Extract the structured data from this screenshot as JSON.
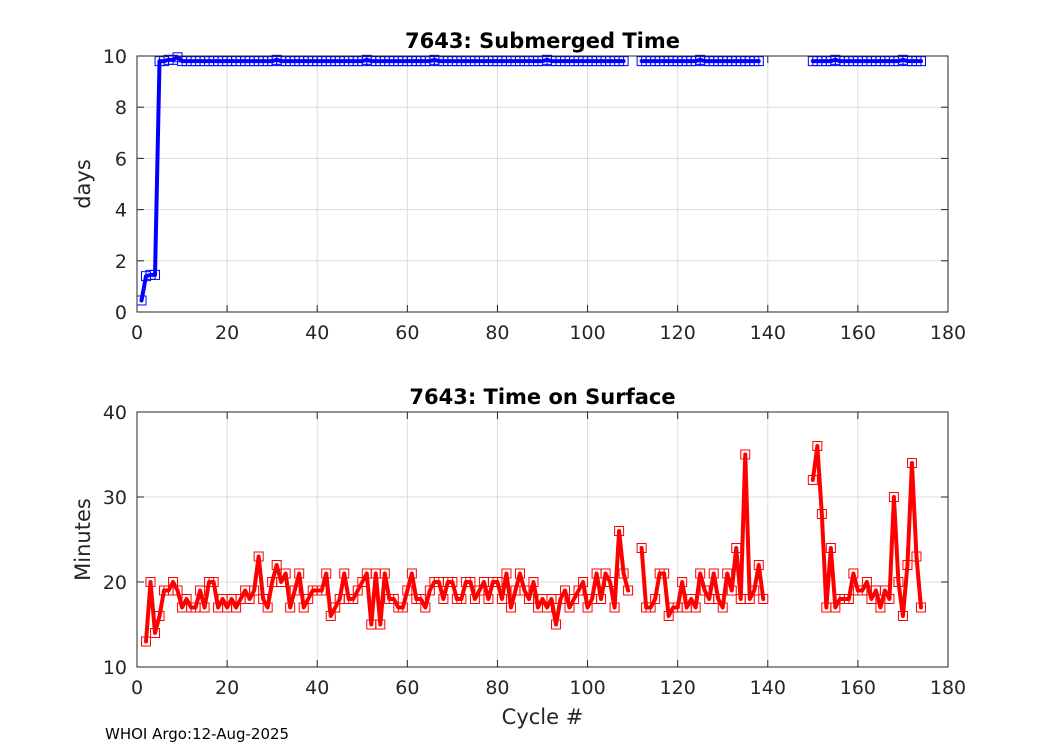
{
  "chart_data": [
    {
      "type": "line",
      "title": "7643: Submerged Time",
      "xlabel": "",
      "ylabel": "days",
      "xlim": [
        0,
        180
      ],
      "ylim": [
        0,
        10
      ],
      "xticks": [
        "0",
        "20",
        "40",
        "60",
        "80",
        "100",
        "120",
        "140",
        "160",
        "180"
      ],
      "yticks": [
        "0",
        "2",
        "4",
        "6",
        "8",
        "10"
      ],
      "grid": true,
      "color": "#0000ff",
      "marker": "square",
      "series": [
        {
          "x": [
            1,
            2,
            3,
            4,
            5,
            6,
            7,
            8,
            9,
            10,
            11,
            12,
            13,
            14,
            15,
            16,
            17,
            18,
            19,
            20,
            21,
            22,
            23,
            24,
            25,
            26,
            27,
            28,
            29,
            30,
            31,
            32,
            33,
            34,
            35,
            36,
            37,
            38,
            39,
            40,
            41,
            42,
            43,
            44,
            45,
            46,
            47,
            48,
            49,
            50,
            51,
            52,
            53,
            54,
            55,
            56,
            57,
            58,
            59,
            60,
            61,
            62,
            63,
            64,
            65,
            66,
            67,
            68,
            69,
            70,
            71,
            72,
            73,
            74,
            75,
            76,
            77,
            78,
            79,
            80,
            81,
            82,
            83,
            84,
            85,
            86,
            87,
            88,
            89,
            90,
            91,
            92,
            93,
            94,
            95,
            96,
            97,
            98,
            99,
            100,
            101,
            102,
            103,
            104,
            105,
            106,
            107,
            108,
            null,
            112,
            113,
            114,
            115,
            116,
            117,
            118,
            119,
            120,
            121,
            122,
            123,
            124,
            125,
            126,
            127,
            128,
            129,
            130,
            131,
            132,
            133,
            134,
            135,
            136,
            137,
            138,
            null,
            150,
            151,
            152,
            153,
            154,
            155,
            156,
            157,
            158,
            159,
            160,
            161,
            162,
            163,
            164,
            165,
            166,
            167,
            168,
            169,
            170,
            171,
            172,
            173,
            174
          ],
          "y": [
            0.45,
            1.4,
            1.45,
            1.45,
            9.8,
            9.8,
            9.85,
            9.85,
            9.95,
            9.8,
            9.8,
            9.8,
            9.8,
            9.8,
            9.8,
            9.8,
            9.8,
            9.8,
            9.8,
            9.8,
            9.8,
            9.8,
            9.8,
            9.8,
            9.8,
            9.8,
            9.8,
            9.8,
            9.8,
            9.8,
            9.85,
            9.8,
            9.8,
            9.8,
            9.8,
            9.8,
            9.8,
            9.8,
            9.8,
            9.8,
            9.8,
            9.8,
            9.8,
            9.8,
            9.8,
            9.8,
            9.8,
            9.8,
            9.8,
            9.8,
            9.85,
            9.8,
            9.8,
            9.8,
            9.8,
            9.8,
            9.8,
            9.8,
            9.8,
            9.8,
            9.8,
            9.8,
            9.8,
            9.8,
            9.8,
            9.85,
            9.8,
            9.8,
            9.8,
            9.8,
            9.8,
            9.8,
            9.8,
            9.8,
            9.8,
            9.8,
            9.8,
            9.8,
            9.8,
            9.8,
            9.8,
            9.8,
            9.8,
            9.8,
            9.8,
            9.8,
            9.8,
            9.8,
            9.8,
            9.8,
            9.85,
            9.8,
            9.8,
            9.8,
            9.8,
            9.8,
            9.8,
            9.8,
            9.8,
            9.8,
            9.8,
            9.8,
            9.8,
            9.8,
            9.8,
            9.8,
            9.8,
            9.8,
            null,
            9.8,
            9.8,
            9.8,
            9.8,
            9.8,
            9.8,
            9.8,
            9.8,
            9.8,
            9.8,
            9.8,
            9.8,
            9.8,
            9.85,
            9.8,
            9.8,
            9.8,
            9.8,
            9.8,
            9.8,
            9.8,
            9.8,
            9.8,
            9.8,
            9.8,
            9.8,
            9.8,
            null,
            9.8,
            9.8,
            9.8,
            9.8,
            9.8,
            9.85,
            9.8,
            9.8,
            9.8,
            9.8,
            9.8,
            9.8,
            9.8,
            9.8,
            9.8,
            9.8,
            9.8,
            9.8,
            9.8,
            9.8,
            9.85,
            9.8,
            9.8,
            9.8,
            9.8
          ]
        }
      ]
    },
    {
      "type": "line",
      "title": "7643: Time on Surface",
      "xlabel": "Cycle #",
      "ylabel": "Minutes",
      "xlim": [
        0,
        180
      ],
      "ylim": [
        10,
        40
      ],
      "xticks": [
        "0",
        "20",
        "40",
        "60",
        "80",
        "100",
        "120",
        "140",
        "160",
        "180"
      ],
      "yticks": [
        "10",
        "20",
        "30",
        "40"
      ],
      "grid": true,
      "color": "#ff0000",
      "marker": "square",
      "series": [
        {
          "x": [
            2,
            3,
            4,
            5,
            6,
            7,
            8,
            9,
            10,
            11,
            12,
            13,
            14,
            15,
            16,
            17,
            18,
            19,
            20,
            21,
            22,
            23,
            24,
            25,
            26,
            27,
            28,
            29,
            30,
            31,
            32,
            33,
            34,
            35,
            36,
            37,
            38,
            39,
            40,
            41,
            42,
            43,
            44,
            45,
            46,
            47,
            48,
            49,
            50,
            51,
            52,
            53,
            54,
            55,
            56,
            57,
            58,
            59,
            60,
            61,
            62,
            63,
            64,
            65,
            66,
            67,
            68,
            69,
            70,
            71,
            72,
            73,
            74,
            75,
            76,
            77,
            78,
            79,
            80,
            81,
            82,
            83,
            84,
            85,
            86,
            87,
            88,
            89,
            90,
            91,
            92,
            93,
            94,
            95,
            96,
            97,
            98,
            99,
            100,
            101,
            102,
            103,
            104,
            105,
            106,
            107,
            108,
            109,
            null,
            112,
            113,
            114,
            115,
            116,
            117,
            118,
            119,
            120,
            121,
            122,
            123,
            124,
            125,
            126,
            127,
            128,
            129,
            130,
            131,
            132,
            133,
            134,
            135,
            136,
            137,
            138,
            139,
            null,
            150,
            151,
            152,
            153,
            154,
            155,
            156,
            157,
            158,
            159,
            160,
            161,
            162,
            163,
            164,
            165,
            166,
            167,
            168,
            169,
            170,
            171,
            172,
            173,
            174
          ],
          "y": [
            13,
            20,
            14,
            16,
            19,
            19,
            20,
            19,
            17,
            18,
            17,
            17,
            19,
            17,
            20,
            20,
            17,
            18,
            17,
            18,
            17,
            18,
            19,
            18,
            19,
            23,
            18,
            17,
            20,
            22,
            20,
            21,
            17,
            19,
            21,
            17,
            18,
            19,
            19,
            19,
            21,
            16,
            17,
            18,
            21,
            18,
            18,
            19,
            20,
            21,
            15,
            21,
            15,
            21,
            18,
            18,
            17,
            17,
            19,
            21,
            18,
            18,
            17,
            19,
            20,
            20,
            18,
            20,
            20,
            18,
            18,
            20,
            20,
            18,
            19,
            20,
            18,
            20,
            20,
            18,
            21,
            17,
            19,
            21,
            19,
            18,
            20,
            17,
            18,
            17,
            18,
            15,
            18,
            19,
            17,
            18,
            19,
            20,
            17,
            18,
            21,
            18,
            21,
            20,
            17,
            26,
            21,
            19,
            null,
            24,
            17,
            17,
            18,
            21,
            21,
            16,
            17,
            17,
            20,
            17,
            18,
            17,
            21,
            19,
            18,
            21,
            18,
            17,
            21,
            19,
            24,
            18,
            35,
            18,
            19,
            22,
            18,
            null,
            32,
            36,
            28,
            17,
            24,
            17,
            18,
            18,
            18,
            21,
            19,
            19,
            20,
            18,
            19,
            17,
            19,
            18,
            30,
            20,
            16,
            22,
            34,
            23,
            17
          ]
        }
      ]
    }
  ],
  "footer": "WHOI Argo:12-Aug-2025"
}
